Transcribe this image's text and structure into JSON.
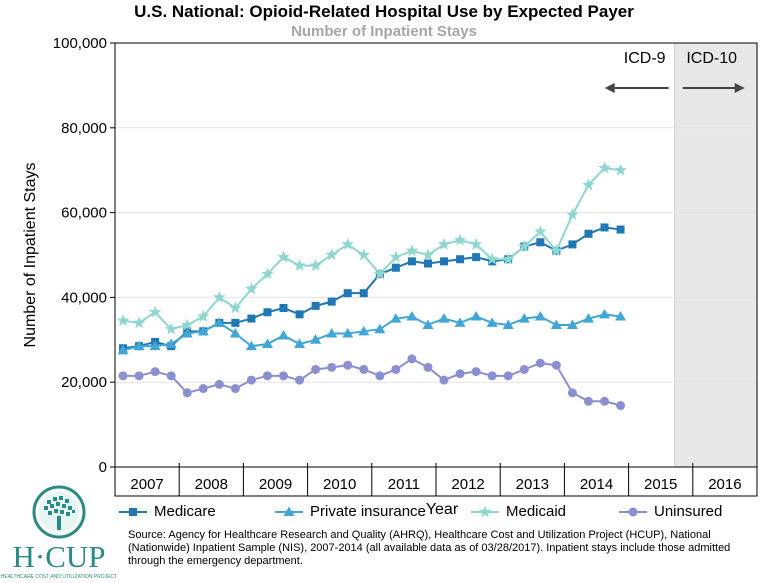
{
  "title": "U.S. National: Opioid-Related Hospital Use by Expected Payer",
  "subtitle": "Number of Inpatient Stays",
  "chart_data": {
    "type": "line",
    "ylabel": "Number of Inpatient Stays",
    "xlabel": "Year",
    "ylim": [
      0,
      100000
    ],
    "yticks": [
      "0",
      "20,000",
      "40,000",
      "60,000",
      "80,000",
      "100,000"
    ],
    "year_labels": [
      "2007",
      "2008",
      "2009",
      "2010",
      "2011",
      "2012",
      "2013",
      "2014",
      "2015",
      "2016"
    ],
    "x_quarter_range": [
      0,
      39
    ],
    "icd9_label": "ICD-9",
    "icd10_label": "ICD-10",
    "icd10_start_quarter": 34,
    "series": [
      {
        "name": "Medicare",
        "color": "#1f77b4",
        "marker": "square",
        "values": [
          28000,
          28500,
          29500,
          28500,
          32000,
          32000,
          34000,
          34000,
          35000,
          36500,
          37500,
          36000,
          38000,
          39000,
          41000,
          41000,
          45500,
          47000,
          48500,
          48000,
          48500,
          49000,
          49500,
          48500,
          49000,
          52000,
          53000,
          51000,
          52500,
          55000,
          56500,
          56000
        ]
      },
      {
        "name": "Private insurance",
        "color": "#41a6d6",
        "marker": "triangle",
        "values": [
          27500,
          28500,
          28500,
          29000,
          31500,
          32000,
          34000,
          31500,
          28500,
          29000,
          31000,
          29000,
          30000,
          31500,
          31500,
          32000,
          32500,
          35000,
          35500,
          33500,
          35000,
          34000,
          35500,
          34000,
          33500,
          35000,
          35500,
          33500,
          33500,
          35000,
          36000,
          35500
        ]
      },
      {
        "name": "Medicaid",
        "color": "#8fd6cf",
        "marker": "star",
        "values": [
          34500,
          34000,
          36500,
          32500,
          33500,
          35500,
          40000,
          37500,
          42000,
          45500,
          49500,
          47500,
          47500,
          50000,
          52500,
          50000,
          45500,
          49500,
          51000,
          50000,
          52500,
          53500,
          52500,
          49000,
          49000,
          52000,
          55500,
          51000,
          59500,
          66500,
          70500,
          70000
        ]
      },
      {
        "name": "Uninsured",
        "color": "#8b8fd0",
        "marker": "circle",
        "values": [
          21500,
          21500,
          22500,
          21500,
          17500,
          18500,
          19500,
          18500,
          20500,
          21500,
          21500,
          20500,
          23000,
          23500,
          24000,
          23000,
          21500,
          23000,
          25500,
          23500,
          20500,
          22000,
          22500,
          21500,
          21500,
          23000,
          24500,
          24000,
          17500,
          15500,
          15500,
          14500
        ]
      }
    ]
  },
  "source_text": "Source: Agency for Healthcare Research and Quality (AHRQ), Healthcare Cost and Utilization Project (HCUP), National (Nationwide) Inpatient Sample (NIS), 2007-2014 (all available data as of 03/28/2017). Inpatient stays include those admitted through the emergency department.",
  "logo_text": "H·CUP",
  "logo_subtext": "HEALTHCARE COST AND UTILIZATION PROJECT"
}
